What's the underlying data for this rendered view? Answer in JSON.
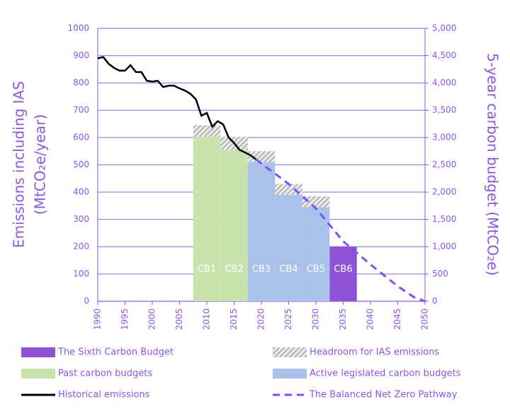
{
  "chart_data": {
    "type": "combo",
    "y_label": [
      "Emissions including IAS",
      "(MtCO₂e/year)"
    ],
    "y2_label": "5-year carbon budget (MtCO₂e)",
    "xlim": [
      1990,
      2050
    ],
    "xticks": [
      1990,
      1995,
      2000,
      2005,
      2010,
      2015,
      2020,
      2025,
      2030,
      2035,
      2040,
      2045,
      2050
    ],
    "ylim": [
      0,
      1000
    ],
    "yticks": [
      0,
      100,
      200,
      300,
      400,
      500,
      600,
      700,
      800,
      900,
      1000
    ],
    "y2lim": [
      0,
      5000
    ],
    "y2ticks": [
      0,
      500,
      {
        "value": 1000,
        "label": "1,000"
      },
      {
        "value": 1500,
        "label": "1,500"
      },
      {
        "value": 2000,
        "label": "2,000"
      },
      {
        "value": 2500,
        "label": "2,500"
      },
      {
        "value": 3000,
        "label": "3,000"
      },
      {
        "value": 3500,
        "label": "3,500"
      },
      {
        "value": 4000,
        "label": "4,000"
      },
      {
        "value": 4500,
        "label": "4,500"
      },
      {
        "value": 5000,
        "label": "5,000"
      }
    ],
    "grid": true,
    "axis_color": "#8a55f0",
    "series": [
      {
        "name": "The Sixth Carbon Budget",
        "kind": "block",
        "color": "#8e52d6",
        "labels": [
          "CB6"
        ],
        "x_start": [
          2032.5
        ],
        "x_end": [
          2037.5
        ],
        "values": [
          200
        ]
      },
      {
        "name": "Headroom for IAS emissions",
        "kind": "hatch",
        "color": "#9a9a9a",
        "x_start": [
          2007.5,
          2012.5,
          2017.5,
          2022.5,
          2027.5
        ],
        "x_end": [
          2012.5,
          2017.5,
          2022.5,
          2027.5,
          2032.5
        ],
        "values": [
          42,
          48,
          40,
          40,
          40
        ]
      },
      {
        "name": "Past carbon budgets",
        "kind": "block",
        "color": "#c9e3ad",
        "labels": [
          "CB1",
          "CB2"
        ],
        "x_start": [
          2007.5,
          2012.5
        ],
        "x_end": [
          2012.5,
          2017.5
        ],
        "values": [
          603,
          555
        ]
      },
      {
        "name": "Active legislated carbon budgets",
        "kind": "block",
        "color": "#a9c2ea",
        "labels": [
          "CB3",
          "CB4",
          "CB5"
        ],
        "x_start": [
          2017.5,
          2022.5,
          2027.5
        ],
        "x_end": [
          2022.5,
          2027.5,
          2032.5
        ],
        "values": [
          510,
          390,
          345
        ]
      },
      {
        "name": "Historical emissions",
        "kind": "line",
        "color": "#000000",
        "dashed": false,
        "x": [
          1990,
          1991,
          1992,
          1993,
          1994,
          1995,
          1996,
          1997,
          1998,
          1999,
          2000,
          2001,
          2002,
          2003,
          2004,
          2005,
          2006,
          2007,
          2008,
          2009,
          2010,
          2011,
          2012,
          2013,
          2014,
          2015,
          2016,
          2017,
          2018,
          2019
        ],
        "values": [
          890,
          895,
          870,
          855,
          845,
          845,
          865,
          840,
          840,
          808,
          805,
          808,
          785,
          790,
          790,
          780,
          772,
          760,
          740,
          680,
          690,
          640,
          660,
          648,
          600,
          580,
          555,
          545,
          535,
          520
        ]
      },
      {
        "name": "The Balanced Net Zero Pathway",
        "kind": "line",
        "color": "#7b4dff",
        "dashed": true,
        "x": [
          2019,
          2020,
          2025,
          2030,
          2035,
          2040,
          2045,
          2048,
          2050
        ],
        "values": [
          520,
          505,
          430,
          340,
          220,
          135,
          55,
          15,
          0
        ]
      }
    ]
  }
}
